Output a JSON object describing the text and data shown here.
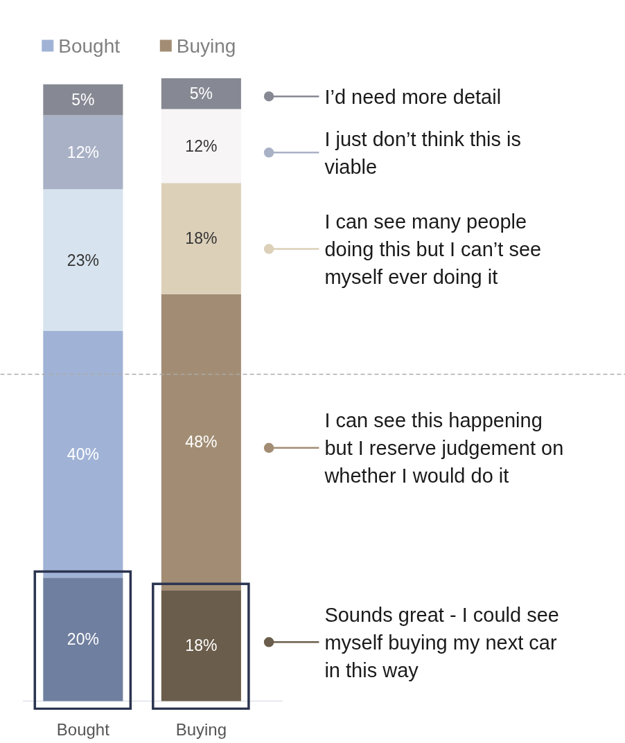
{
  "chart_data": {
    "type": "bar",
    "stacked": true,
    "categories": [
      "Bought",
      "Buying"
    ],
    "legend": "right",
    "series": [
      {
        "name": "Sounds great - I could see myself buying my next car in this way",
        "colors": [
          "#6f7f9f",
          "#6b5d4b"
        ],
        "values": [
          20,
          18
        ],
        "value_labels": [
          "20%",
          "18%"
        ]
      },
      {
        "name": "I can see this happening but I reserve judgement on whether I would do it",
        "colors": [
          "#a0b3d6",
          "#a28d74"
        ],
        "values": [
          40,
          48
        ],
        "value_labels": [
          "40%",
          "48%"
        ]
      },
      {
        "name": "I can see many people doing this but I can’t see myself ever doing it",
        "colors": [
          "#d7e3ee",
          "#dcd0b9"
        ],
        "values": [
          23,
          18
        ],
        "value_labels": [
          "23%",
          "18%"
        ]
      },
      {
        "name": "I just don’t think this is viable",
        "colors": [
          "#a9b1c6",
          "#f7f5f6"
        ],
        "values": [
          12,
          12
        ],
        "value_labels": [
          "12%",
          "12%"
        ]
      },
      {
        "name": "I’d need more detail",
        "colors": [
          "#868993",
          "#868993"
        ],
        "values": [
          5,
          5
        ],
        "value_labels": [
          "5%",
          "5%"
        ]
      }
    ],
    "ref_lines": [
      {
        "axis": "y",
        "value": 53,
        "color": "#aaaaaa",
        "line_style": "dashed"
      }
    ]
  }
}
